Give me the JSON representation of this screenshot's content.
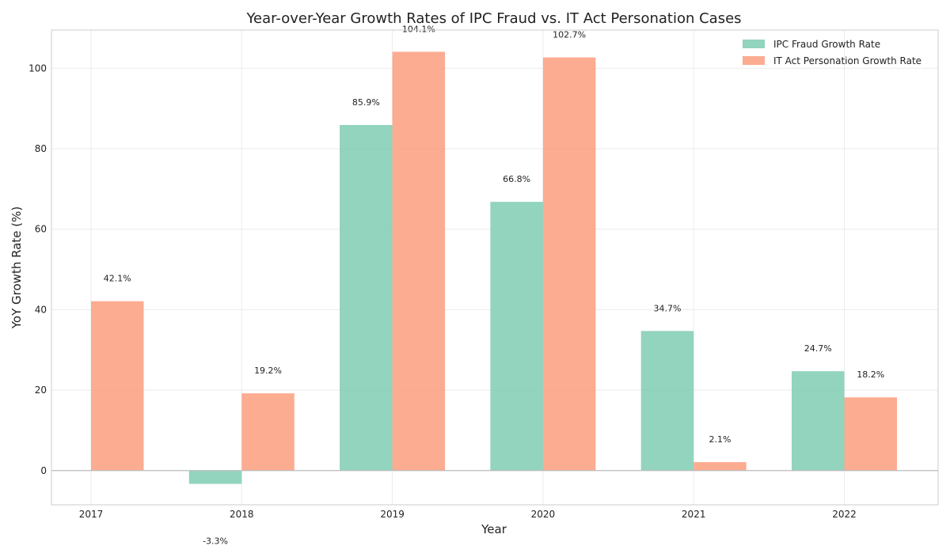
{
  "chart_data": {
    "type": "bar",
    "title": "Year-over-Year Growth Rates of IPC Fraud vs. IT Act Personation Cases",
    "xlabel": "Year",
    "ylabel": "YoY Growth Rate (%)",
    "categories": [
      "2017",
      "2018",
      "2019",
      "2020",
      "2021",
      "2022"
    ],
    "series": [
      {
        "name": "IPC Fraud Growth Rate",
        "color": "#7fcdb1",
        "values": [
          null,
          -3.3,
          85.9,
          66.8,
          34.7,
          24.7
        ],
        "labels": [
          "",
          "-3.3%",
          "85.9%",
          "66.8%",
          "34.7%",
          "24.7%"
        ]
      },
      {
        "name": "IT Act Personation Growth Rate",
        "color": "#fc9e7e",
        "values": [
          42.1,
          19.2,
          104.1,
          102.7,
          2.1,
          18.2
        ],
        "labels": [
          "42.1%",
          "19.2%",
          "104.1%",
          "102.7%",
          "2.1%",
          "18.2%"
        ]
      }
    ],
    "ylim": [
      -8.5,
      109.5
    ],
    "yticks": [
      0,
      20,
      40,
      60,
      80,
      100
    ],
    "grid": true,
    "legend_position": "top-right"
  }
}
